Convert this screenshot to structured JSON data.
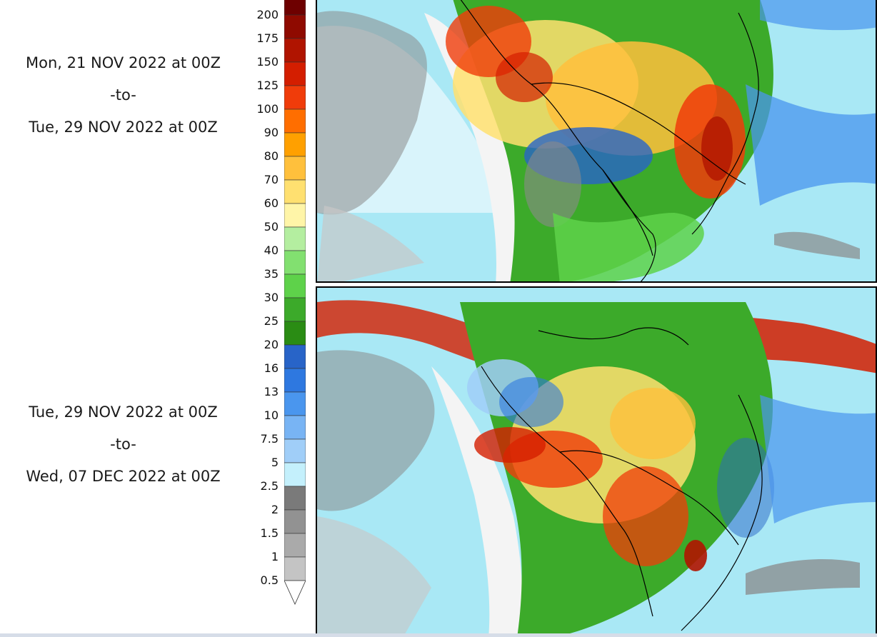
{
  "periods": [
    {
      "from": "Mon, 21 NOV 2022 at 00Z",
      "sep": "-to-",
      "to": "Tue, 29 NOV 2022 at 00Z"
    },
    {
      "from": "Tue, 29 NOV 2022 at 00Z",
      "sep": "-to-",
      "to": "Wed, 07 DEC 2022 at 00Z"
    }
  ],
  "colorbar": {
    "labels": [
      "200",
      "175",
      "150",
      "125",
      "100",
      "90",
      "80",
      "70",
      "60",
      "50",
      "40",
      "35",
      "30",
      "25",
      "20",
      "16",
      "13",
      "10",
      "7.5",
      "5",
      "2.5",
      "2",
      "1.5",
      "1",
      "0.5"
    ],
    "colors": [
      "#6e0000",
      "#8f0a00",
      "#b01400",
      "#d41e00",
      "#f03c0a",
      "#ff6e00",
      "#ffa000",
      "#ffc03c",
      "#ffe070",
      "#fff5a8",
      "#b4eea0",
      "#82e070",
      "#5ed24a",
      "#3caa2a",
      "#2a8c14",
      "#2864c8",
      "#2e78e0",
      "#4a96ee",
      "#78b4f4",
      "#a0cef8",
      "#c4f0fc",
      "#7a7a7a",
      "#929292",
      "#aaaaaa",
      "#c4c4c4"
    ],
    "arrow_color": "#ffffff"
  },
  "map": {
    "ocean_color": "#a9e8f5",
    "land_color": "#f4f4f4",
    "border_color": "#000000"
  }
}
